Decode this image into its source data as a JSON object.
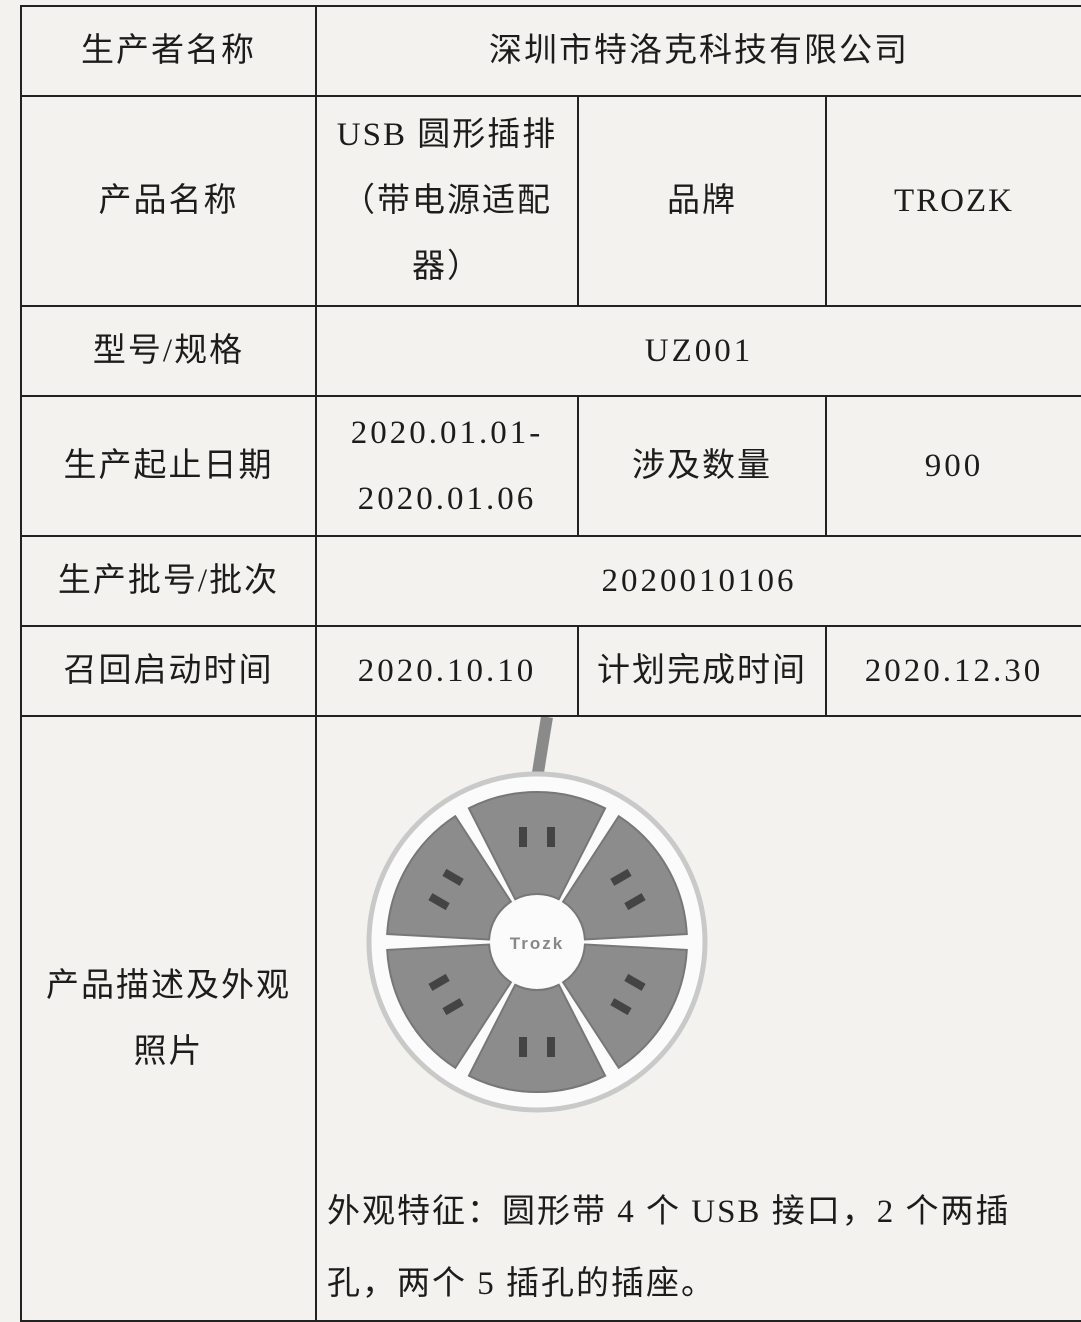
{
  "table": {
    "rows": [
      {
        "label": "生产者名称",
        "value": "深圳市特洛克科技有限公司"
      },
      {
        "label": "产品名称",
        "value": "USB 圆形插排（带电源适配器）",
        "label2": "品牌",
        "value2": "TROZK"
      },
      {
        "label": "型号/规格",
        "value": "UZ001"
      },
      {
        "label": "生产起止日期",
        "value": "2020.01.01-2020.01.06",
        "label2": "涉及数量",
        "value2": "900"
      },
      {
        "label": "生产批号/批次",
        "value": "2020010106"
      },
      {
        "label": "召回启动时间",
        "value": "2020.10.10",
        "label2": "计划完成时间",
        "value2": "2020.12.30"
      },
      {
        "label": "产品描述及外观照片",
        "photo_text": "Trozk",
        "value": "外观特征：圆形带 4 个 USB 接口，2 个两插孔，两个 5 插孔的插座。"
      }
    ]
  }
}
